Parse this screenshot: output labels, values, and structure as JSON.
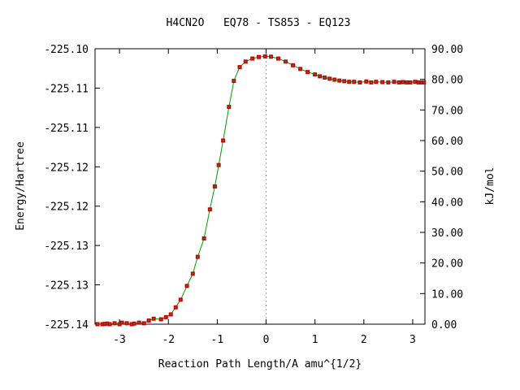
{
  "chart_data": {
    "type": "line",
    "title": "H4CN2O   EQ78 - TS853 - EQ123",
    "xlabel": "Reaction Path Length/A amu^{1/2}",
    "ylabel_left": "Energy/Hartree",
    "ylabel_right": "kJ/mol",
    "xlim": [
      -3.5,
      3.25
    ],
    "ylim_left": [
      -225.14,
      -225.1
    ],
    "ylim_right": [
      0,
      90
    ],
    "x_ticks": [
      -3,
      -2,
      -1,
      0,
      1,
      2,
      3
    ],
    "x_tick_labels": [
      "-3",
      "-2",
      "-1",
      "0",
      "1",
      "2",
      "3"
    ],
    "y_left_tick_labels": [
      "-225.14",
      "-225.13",
      "-225.13",
      "-225.12",
      "-225.12",
      "-225.11",
      "-225.11",
      "-225.10"
    ],
    "y_right_ticks": [
      0,
      10,
      20,
      30,
      40,
      50,
      60,
      70,
      80,
      90
    ],
    "y_right_tick_labels": [
      "0.00",
      "10.00",
      "20.00",
      "30.00",
      "40.00",
      "50.00",
      "60.00",
      "70.00",
      "80.00",
      "90.00"
    ],
    "ts_x": 0,
    "grid": false,
    "colors": {
      "line": "#00a000",
      "marker": "#cc0000",
      "marker_center": "#556b2f",
      "ts_line": "#999999"
    },
    "series": [
      {
        "x": [
          -3.45,
          -3.35,
          -3.3,
          -3.25,
          -3.2,
          -3.1,
          -3.0,
          -2.95,
          -2.85,
          -2.75,
          -2.7,
          -2.6,
          -2.5,
          -2.4,
          -2.3,
          -2.15,
          -2.05,
          -1.95,
          -1.85,
          -1.75,
          -1.62,
          -1.5,
          -1.4,
          -1.27,
          -1.15,
          -1.05,
          -0.97,
          -0.88,
          -0.76,
          -0.66,
          -0.54,
          -0.42,
          -0.28,
          -0.15,
          -0.02,
          0.1,
          0.25,
          0.4,
          0.55,
          0.7,
          0.85,
          1.0,
          1.1,
          1.2,
          1.3,
          1.4,
          1.5,
          1.6,
          1.7,
          1.8,
          1.92,
          2.05,
          2.15,
          2.25,
          2.38,
          2.5,
          2.62,
          2.72,
          2.8,
          2.88,
          2.95,
          3.05,
          3.12,
          3.18,
          3.23
        ],
        "y": [
          0.0,
          0.0,
          0.1,
          0.2,
          0.0,
          0.3,
          0.0,
          0.5,
          0.3,
          0.0,
          0.2,
          0.5,
          0.3,
          1.2,
          1.8,
          1.6,
          2.3,
          3.2,
          5.5,
          8.0,
          12.5,
          16.5,
          22.0,
          28.0,
          37.5,
          45.0,
          52.0,
          60.0,
          71.0,
          79.5,
          84.0,
          85.8,
          86.8,
          87.3,
          87.5,
          87.4,
          86.8,
          85.8,
          84.6,
          83.4,
          82.4,
          81.6,
          81.0,
          80.6,
          80.2,
          79.9,
          79.6,
          79.4,
          79.2,
          79.2,
          79.0,
          79.3,
          79.0,
          79.2,
          79.1,
          79.0,
          79.2,
          79.0,
          79.1,
          79.0,
          79.0,
          79.2,
          79.0,
          79.0,
          79.0
        ]
      }
    ]
  }
}
